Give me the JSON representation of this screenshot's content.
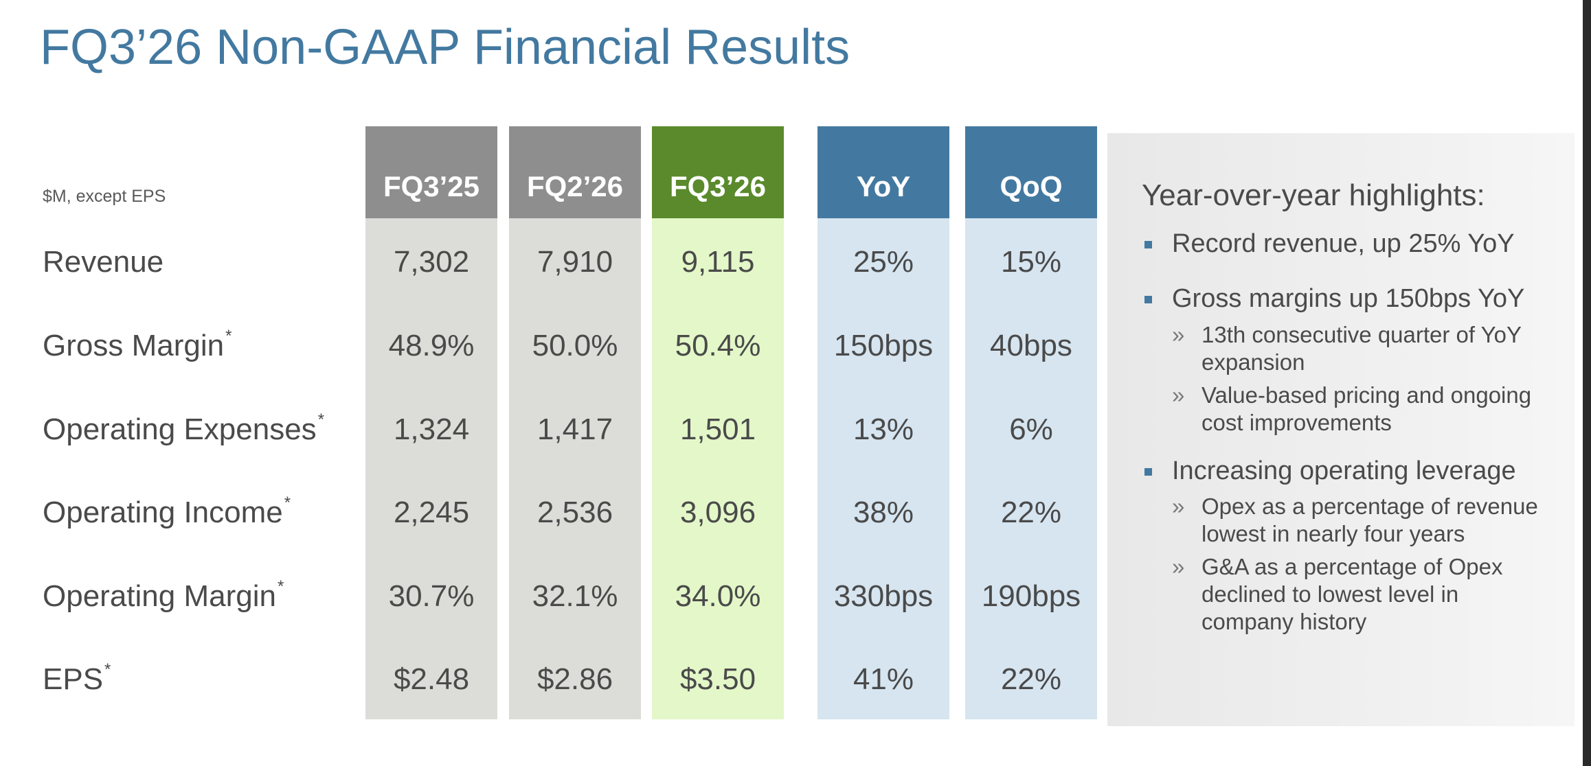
{
  "title": "FQ3’26 Non-GAAP Financial Results",
  "units_note": "$M, except EPS",
  "columns": [
    "FQ3’25",
    "FQ2’26",
    "FQ3’26",
    "YoY",
    "QoQ"
  ],
  "colors": {
    "title_blue": "#4379a0",
    "prior_period_header": "#8e8e8e",
    "current_period_header": "#5a8a2c",
    "change_header": "#4379a0",
    "prior_period_fill": "#dcdcd8",
    "current_period_fill": "#e3f7c8",
    "change_fill": "#d6e5f0"
  },
  "rows": [
    {
      "label": "Revenue",
      "footnote": "",
      "values": [
        "7,302",
        "7,910",
        "9,115",
        "25%",
        "15%"
      ]
    },
    {
      "label": "Gross Margin",
      "footnote": "*",
      "values": [
        "48.9%",
        "50.0%",
        "50.4%",
        "150bps",
        "40bps"
      ]
    },
    {
      "label": "Operating Expenses",
      "footnote": "*",
      "values": [
        "1,324",
        "1,417",
        "1,501",
        "13%",
        "6%"
      ]
    },
    {
      "label": "Operating Income",
      "footnote": "*",
      "values": [
        "2,245",
        "2,536",
        "3,096",
        "38%",
        "22%"
      ]
    },
    {
      "label": "Operating Margin",
      "footnote": "*",
      "values": [
        "30.7%",
        "32.1%",
        "34.0%",
        "330bps",
        "190bps"
      ]
    },
    {
      "label": "EPS",
      "footnote": "*",
      "values": [
        "$2.48",
        "$2.86",
        "$3.50",
        "41%",
        "22%"
      ]
    }
  ],
  "highlights": {
    "title": "Year-over-year highlights:",
    "bullets": [
      {
        "text": "Record revenue, up 25% YoY",
        "subs": []
      },
      {
        "text": "Gross margins up 150bps YoY",
        "subs": [
          {
            "line1": "13th consecutive quarter of YoY",
            "line2": "expansion"
          },
          {
            "line1": "Value-based pricing and ongoing",
            "line2": "cost improvements"
          }
        ]
      },
      {
        "text": "Increasing operating leverage",
        "subs": [
          {
            "line1": "Opex as a percentage of revenue",
            "line2": "lowest in nearly four years"
          },
          {
            "line1": "G&A as a percentage of Opex",
            "line2": "declined to lowest level in",
            "line3": "company history"
          }
        ]
      }
    ],
    "sub_marker": "»"
  }
}
